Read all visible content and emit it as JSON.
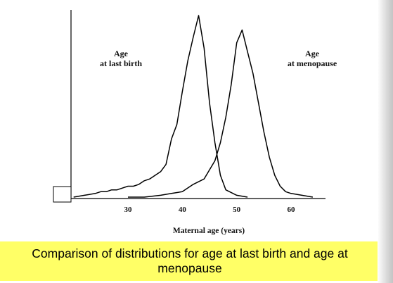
{
  "caption": "Comparison of distributions for age at last birth and age at menopause",
  "colors": {
    "caption_background": "#ffff66",
    "line": "#000000",
    "background": "#ffffff"
  },
  "chart_data": {
    "type": "line",
    "xlabel": "Maternal age (years)",
    "ylabel": "",
    "xlim": [
      20,
      65
    ],
    "ylim": [
      0,
      100
    ],
    "xticks": [
      30,
      40,
      50,
      60
    ],
    "grid": false,
    "series": [
      {
        "name": "Age at last birth",
        "x": [
          20,
          22,
          24,
          25,
          26,
          27,
          28,
          29,
          30,
          31,
          32,
          33,
          34,
          35,
          36,
          37,
          38,
          39,
          40,
          41,
          42,
          43,
          44,
          45,
          46,
          47,
          48,
          50,
          52
        ],
        "y": [
          0,
          1,
          2,
          3,
          3,
          4,
          4,
          5,
          6,
          6,
          7,
          9,
          10,
          12,
          14,
          18,
          32,
          40,
          58,
          75,
          88,
          100,
          82,
          52,
          30,
          12,
          4,
          1,
          0
        ]
      },
      {
        "name": "Age at menopause",
        "x": [
          30,
          33,
          36,
          38,
          40,
          42,
          44,
          45,
          46,
          47,
          48,
          49,
          50,
          51,
          52,
          53,
          54,
          55,
          56,
          57,
          58,
          59,
          60,
          62,
          64
        ],
        "y": [
          0,
          0,
          1,
          2,
          3,
          7,
          10,
          15,
          20,
          30,
          44,
          62,
          85,
          92,
          80,
          68,
          52,
          36,
          22,
          12,
          6,
          3,
          2,
          1,
          0
        ]
      }
    ],
    "annotations": [
      {
        "lines": [
          "Age",
          "at last birth"
        ]
      },
      {
        "lines": [
          "Age",
          "at menopause"
        ]
      }
    ]
  }
}
